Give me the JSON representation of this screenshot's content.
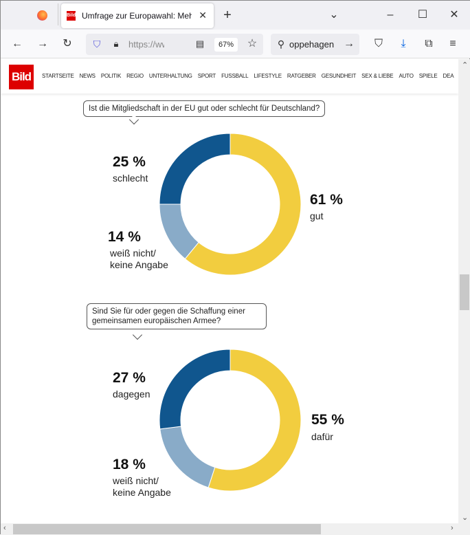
{
  "browser": {
    "tab_title": "Umfrage zur Europawahl: Mehrheit",
    "tab_favicon": "Bild",
    "url": "https://www.bild.de",
    "zoom": "67%",
    "search": "oppehagen"
  },
  "site": {
    "logo": "Bild",
    "menu": [
      "STARTSEITE",
      "NEWS",
      "POLITIK",
      "REGIO",
      "UNTERHALTUNG",
      "SPORT",
      "FUSSBALL",
      "LIFESTYLE",
      "RATGEBER",
      "GESUNDHEIT",
      "SEX & LIEBE",
      "AUTO",
      "SPIELE",
      "DEA"
    ]
  },
  "chart_data": [
    {
      "type": "pie",
      "title": "Ist die Mitgliedschaft in der EU gut oder schlecht für Deutschland?",
      "slices": [
        {
          "label": "gut",
          "value": 61,
          "pct": "61 %",
          "color": "#f2cd3f"
        },
        {
          "label": "weiß nicht/ keine Angabe",
          "value": 14,
          "pct": "14 %",
          "color": "#89abc8"
        },
        {
          "label": "schlecht",
          "value": 25,
          "pct": "25 %",
          "color": "#10568e"
        }
      ]
    },
    {
      "type": "pie",
      "title": "Sind Sie für oder gegen die Schaffung einer gemeinsamen europäischen Armee?",
      "slices": [
        {
          "label": "dafür",
          "value": 55,
          "pct": "55 %",
          "color": "#f2cd3f"
        },
        {
          "label": "weiß nicht/ keine Angabe",
          "value": 18,
          "pct": "18 %",
          "color": "#89abc8"
        },
        {
          "label": "dagegen",
          "value": 27,
          "pct": "27 %",
          "color": "#10568e"
        }
      ]
    }
  ]
}
